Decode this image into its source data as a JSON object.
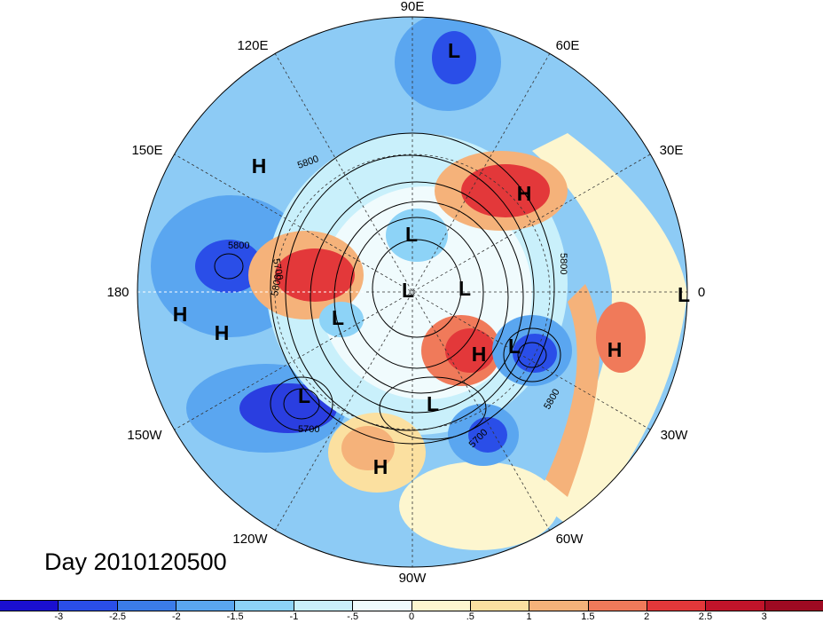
{
  "map": {
    "projection": "north polar stereographic",
    "longitude_labels": [
      "90E",
      "60E",
      "30E",
      "0",
      "30W",
      "60W",
      "90W",
      "120W",
      "150W",
      "180",
      "150E",
      "120E"
    ],
    "highs_label": "H",
    "lows_label": "L",
    "contour_labels": [
      "5800",
      "5700",
      "5800",
      "5800",
      "5700",
      "5700",
      "5800",
      "5800"
    ]
  },
  "title": "Day 2010120500",
  "colorbar": {
    "tick_labels": [
      "-3",
      "-2.5",
      "-2",
      "-1.5",
      "-1",
      "-.5",
      "0",
      ".5",
      "1",
      "1.5",
      "2",
      "2.5",
      "3"
    ],
    "colors": [
      "#1a0fd0",
      "#2a4ee8",
      "#3b7ce8",
      "#5aa6f0",
      "#8dd3f7",
      "#c9f0fb",
      "#f0fbfd",
      "#fdf6cf",
      "#fbe0a0",
      "#f5b27a",
      "#f07a5a",
      "#e3383a",
      "#c0142a",
      "#9e0a22"
    ]
  }
}
